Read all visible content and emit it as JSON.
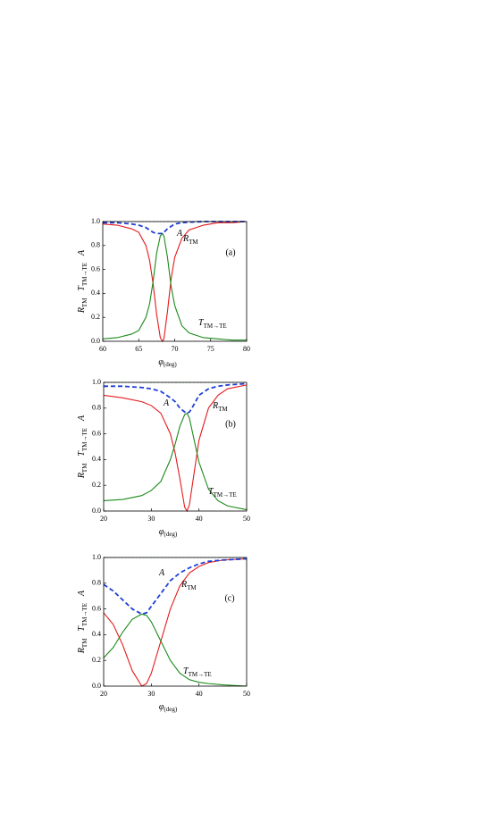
{
  "chart_data": [
    {
      "type": "line",
      "xlabel": "φ",
      "xlabel_unit": "(deg)",
      "panel": "(a)",
      "ylabel": [
        {
          "text": "R",
          "sub": "TM"
        },
        {
          "text": "T",
          "sub": "TM→TE"
        },
        {
          "text": "A"
        }
      ],
      "xlim": [
        60,
        80
      ],
      "xticks": [
        60,
        65,
        70,
        75,
        80
      ],
      "ylim": [
        0,
        1
      ],
      "yticks": [
        {
          "value": 0,
          "label": "0.0"
        },
        {
          "value": 0.2,
          "label": "0.2"
        },
        {
          "value": 0.4,
          "label": "0.4"
        },
        {
          "value": 0.6,
          "label": "0.6"
        },
        {
          "value": 0.8,
          "label": "0.8"
        },
        {
          "value": 1,
          "label": "1.0"
        }
      ],
      "hline": 1,
      "hline_color": "#555",
      "x": [
        60,
        62,
        64,
        65,
        66,
        66.5,
        67,
        67.5,
        68,
        68.3,
        68.5,
        69,
        69.5,
        70,
        71,
        72,
        74,
        76,
        78,
        80
      ],
      "series": [
        {
          "name": "R",
          "sub": "TM",
          "color": "#e41a1c",
          "dashed": false,
          "values": [
            0.98,
            0.97,
            0.94,
            0.91,
            0.8,
            0.68,
            0.48,
            0.22,
            0.03,
            0.0,
            0.02,
            0.25,
            0.52,
            0.7,
            0.86,
            0.93,
            0.97,
            0.99,
            0.99,
            1.0
          ]
        },
        {
          "name": "T",
          "sub": "TM→TE",
          "color": "#1a8a1a",
          "dashed": false,
          "values": [
            0.02,
            0.03,
            0.06,
            0.09,
            0.2,
            0.31,
            0.5,
            0.74,
            0.88,
            0.9,
            0.88,
            0.7,
            0.46,
            0.3,
            0.13,
            0.07,
            0.03,
            0.02,
            0.01,
            0.01
          ]
        },
        {
          "name": "A",
          "color": "#1f3fd6",
          "dashed": true,
          "values": [
            0.99,
            0.99,
            0.98,
            0.97,
            0.95,
            0.93,
            0.91,
            0.9,
            0.9,
            0.9,
            0.91,
            0.94,
            0.96,
            0.98,
            0.99,
            0.995,
            1.0,
            1.0,
            1.0,
            1.0
          ]
        }
      ]
    },
    {
      "type": "line",
      "xlabel": "φ",
      "xlabel_unit": "(deg)",
      "panel": "(b)",
      "ylabel": [
        {
          "text": "R",
          "sub": "TM"
        },
        {
          "text": "T",
          "sub": "TM→TE"
        },
        {
          "text": "A"
        }
      ],
      "xlim": [
        20,
        50
      ],
      "xticks": [
        20,
        30,
        40,
        50
      ],
      "ylim": [
        0,
        1
      ],
      "yticks": [
        {
          "value": 0,
          "label": "0.0"
        },
        {
          "value": 0.2,
          "label": "0.2"
        },
        {
          "value": 0.4,
          "label": "0.4"
        },
        {
          "value": 0.6,
          "label": "0.6"
        },
        {
          "value": 0.8,
          "label": "0.8"
        },
        {
          "value": 1,
          "label": "1.0"
        }
      ],
      "hline": 1,
      "hline_color": "#1a8a1a",
      "x": [
        20,
        24,
        28,
        30,
        32,
        34,
        35,
        36,
        37,
        37.5,
        38,
        39,
        40,
        42,
        44,
        46,
        50
      ],
      "series": [
        {
          "name": "R",
          "sub": "TM",
          "color": "#e41a1c",
          "dashed": false,
          "values": [
            0.9,
            0.88,
            0.85,
            0.82,
            0.76,
            0.6,
            0.45,
            0.25,
            0.03,
            0.0,
            0.05,
            0.3,
            0.55,
            0.8,
            0.9,
            0.95,
            0.98
          ]
        },
        {
          "name": "T",
          "sub": "TM→TE",
          "color": "#1a8a1a",
          "dashed": false,
          "values": [
            0.08,
            0.09,
            0.12,
            0.16,
            0.23,
            0.4,
            0.52,
            0.66,
            0.75,
            0.76,
            0.72,
            0.55,
            0.38,
            0.17,
            0.08,
            0.04,
            0.01
          ]
        },
        {
          "name": "A",
          "color": "#1f3fd6",
          "dashed": true,
          "values": [
            0.97,
            0.97,
            0.96,
            0.95,
            0.93,
            0.88,
            0.85,
            0.8,
            0.77,
            0.76,
            0.77,
            0.83,
            0.9,
            0.95,
            0.97,
            0.98,
            0.99
          ]
        }
      ]
    },
    {
      "type": "line",
      "xlabel": "φ",
      "xlabel_unit": "(deg)",
      "panel": "(c)",
      "ylabel": [
        {
          "text": "R",
          "sub": "TM"
        },
        {
          "text": "T",
          "sub": "TM→TE"
        },
        {
          "text": "A"
        }
      ],
      "xlim": [
        20,
        50
      ],
      "xticks": [
        20,
        30,
        40,
        50
      ],
      "ylim": [
        0,
        1
      ],
      "yticks": [
        {
          "value": 0,
          "label": "0.0"
        },
        {
          "value": 0.2,
          "label": "0.2"
        },
        {
          "value": 0.4,
          "label": "0.4"
        },
        {
          "value": 0.6,
          "label": "0.6"
        },
        {
          "value": 0.8,
          "label": "0.8"
        },
        {
          "value": 1,
          "label": "1.0"
        }
      ],
      "hline": 1,
      "hline_color": "#1a8a1a",
      "x": [
        20,
        22,
        24,
        26,
        28,
        29,
        30,
        32,
        34,
        36,
        38,
        40,
        42,
        45,
        50
      ],
      "series": [
        {
          "name": "R",
          "sub": "TM",
          "color": "#e41a1c",
          "dashed": false,
          "values": [
            0.57,
            0.48,
            0.32,
            0.12,
            0.0,
            0.02,
            0.1,
            0.35,
            0.6,
            0.78,
            0.88,
            0.93,
            0.96,
            0.98,
            0.99
          ]
        },
        {
          "name": "T",
          "sub": "TM→TE",
          "color": "#1a8a1a",
          "dashed": false,
          "values": [
            0.22,
            0.3,
            0.42,
            0.52,
            0.56,
            0.55,
            0.5,
            0.35,
            0.2,
            0.1,
            0.05,
            0.03,
            0.02,
            0.01,
            0.0
          ]
        },
        {
          "name": "A",
          "color": "#1f3fd6",
          "dashed": true,
          "values": [
            0.79,
            0.74,
            0.67,
            0.6,
            0.56,
            0.57,
            0.62,
            0.72,
            0.82,
            0.88,
            0.92,
            0.95,
            0.97,
            0.98,
            0.99
          ]
        }
      ]
    }
  ]
}
